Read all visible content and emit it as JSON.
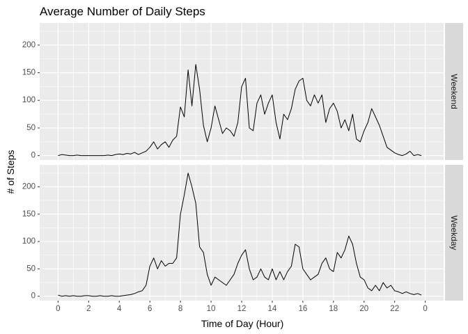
{
  "chart_data": {
    "type": "line",
    "title": "Average Number of Daily Steps",
    "xlabel": "Time of Day (Hour)",
    "ylabel": "# of Steps",
    "x_tick_labels": [
      "0",
      "2",
      "4",
      "6",
      "8",
      "10",
      "12",
      "14",
      "16",
      "18",
      "20",
      "22",
      "0"
    ],
    "y_tick_labels": [
      "0",
      "50",
      "100",
      "150",
      "200"
    ],
    "ylim": [
      -8,
      240
    ],
    "grid": true,
    "line_color": "#000000",
    "panel_background": "#ebebeb",
    "strip_background": "#d9d9d9",
    "panels": [
      {
        "name": "Weekend",
        "hour": [
          0,
          0.25,
          0.5,
          0.75,
          1,
          1.25,
          1.5,
          1.75,
          2,
          2.25,
          2.5,
          2.75,
          3,
          3.25,
          3.5,
          3.75,
          4,
          4.25,
          4.5,
          4.75,
          5,
          5.25,
          5.5,
          5.75,
          6,
          6.25,
          6.5,
          6.75,
          7,
          7.25,
          7.5,
          7.75,
          8,
          8.25,
          8.5,
          8.75,
          9,
          9.25,
          9.5,
          9.75,
          10,
          10.25,
          10.5,
          10.75,
          11,
          11.25,
          11.5,
          11.75,
          12,
          12.25,
          12.5,
          12.75,
          13,
          13.25,
          13.5,
          13.75,
          14,
          14.25,
          14.5,
          14.75,
          15,
          15.25,
          15.5,
          15.75,
          16,
          16.25,
          16.5,
          16.75,
          17,
          17.25,
          17.5,
          17.75,
          18,
          18.25,
          18.5,
          18.75,
          19,
          19.25,
          19.5,
          19.75,
          20,
          20.25,
          20.5,
          20.75,
          21,
          21.25,
          21.5,
          21.75,
          22,
          22.25,
          22.5,
          22.75,
          23,
          23.25,
          23.5,
          23.75
        ],
        "steps": [
          0,
          2,
          1,
          0,
          0,
          1,
          0,
          0,
          0,
          0,
          0,
          0,
          0,
          1,
          0,
          2,
          3,
          2,
          4,
          3,
          6,
          2,
          5,
          8,
          15,
          25,
          12,
          20,
          25,
          15,
          28,
          35,
          88,
          70,
          155,
          90,
          165,
          120,
          55,
          25,
          50,
          90,
          65,
          40,
          50,
          45,
          35,
          60,
          125,
          140,
          50,
          45,
          95,
          110,
          75,
          95,
          110,
          60,
          30,
          75,
          65,
          85,
          120,
          135,
          140,
          100,
          90,
          110,
          95,
          110,
          60,
          85,
          95,
          80,
          50,
          65,
          45,
          75,
          30,
          25,
          45,
          60,
          85,
          70,
          55,
          35,
          15,
          10,
          5,
          2,
          0,
          3,
          8,
          0,
          2,
          0,
          12,
          1
        ]
      },
      {
        "name": "Weekday",
        "hour": [
          0,
          0.25,
          0.5,
          0.75,
          1,
          1.25,
          1.5,
          1.75,
          2,
          2.25,
          2.5,
          2.75,
          3,
          3.25,
          3.5,
          3.75,
          4,
          4.25,
          4.5,
          4.75,
          5,
          5.25,
          5.5,
          5.75,
          6,
          6.25,
          6.5,
          6.75,
          7,
          7.25,
          7.5,
          7.75,
          8,
          8.25,
          8.5,
          8.75,
          9,
          9.25,
          9.5,
          9.75,
          10,
          10.25,
          10.5,
          10.75,
          11,
          11.25,
          11.5,
          11.75,
          12,
          12.25,
          12.5,
          12.75,
          13,
          13.25,
          13.5,
          13.75,
          14,
          14.25,
          14.5,
          14.75,
          15,
          15.25,
          15.5,
          15.75,
          16,
          16.25,
          16.5,
          16.75,
          17,
          17.25,
          17.5,
          17.75,
          18,
          18.25,
          18.5,
          18.75,
          19,
          19.25,
          19.5,
          19.75,
          20,
          20.25,
          20.5,
          20.75,
          21,
          21.25,
          21.5,
          21.75,
          22,
          22.25,
          22.5,
          22.75,
          23,
          23.25,
          23.5,
          23.75
        ],
        "steps": [
          2,
          0,
          1,
          0,
          1,
          0,
          0,
          1,
          1,
          0,
          0,
          1,
          0,
          0,
          1,
          0,
          0,
          1,
          2,
          3,
          5,
          8,
          10,
          20,
          55,
          70,
          50,
          65,
          55,
          60,
          60,
          70,
          150,
          185,
          225,
          200,
          170,
          90,
          80,
          40,
          20,
          35,
          30,
          25,
          20,
          30,
          40,
          60,
          75,
          85,
          50,
          30,
          35,
          50,
          35,
          30,
          50,
          30,
          45,
          30,
          45,
          55,
          95,
          90,
          50,
          40,
          30,
          35,
          40,
          60,
          70,
          50,
          45,
          80,
          70,
          85,
          110,
          95,
          60,
          35,
          30,
          15,
          10,
          20,
          10,
          25,
          15,
          20,
          10,
          8,
          5,
          8,
          5,
          3,
          5,
          2,
          1,
          2
        ]
      }
    ]
  }
}
